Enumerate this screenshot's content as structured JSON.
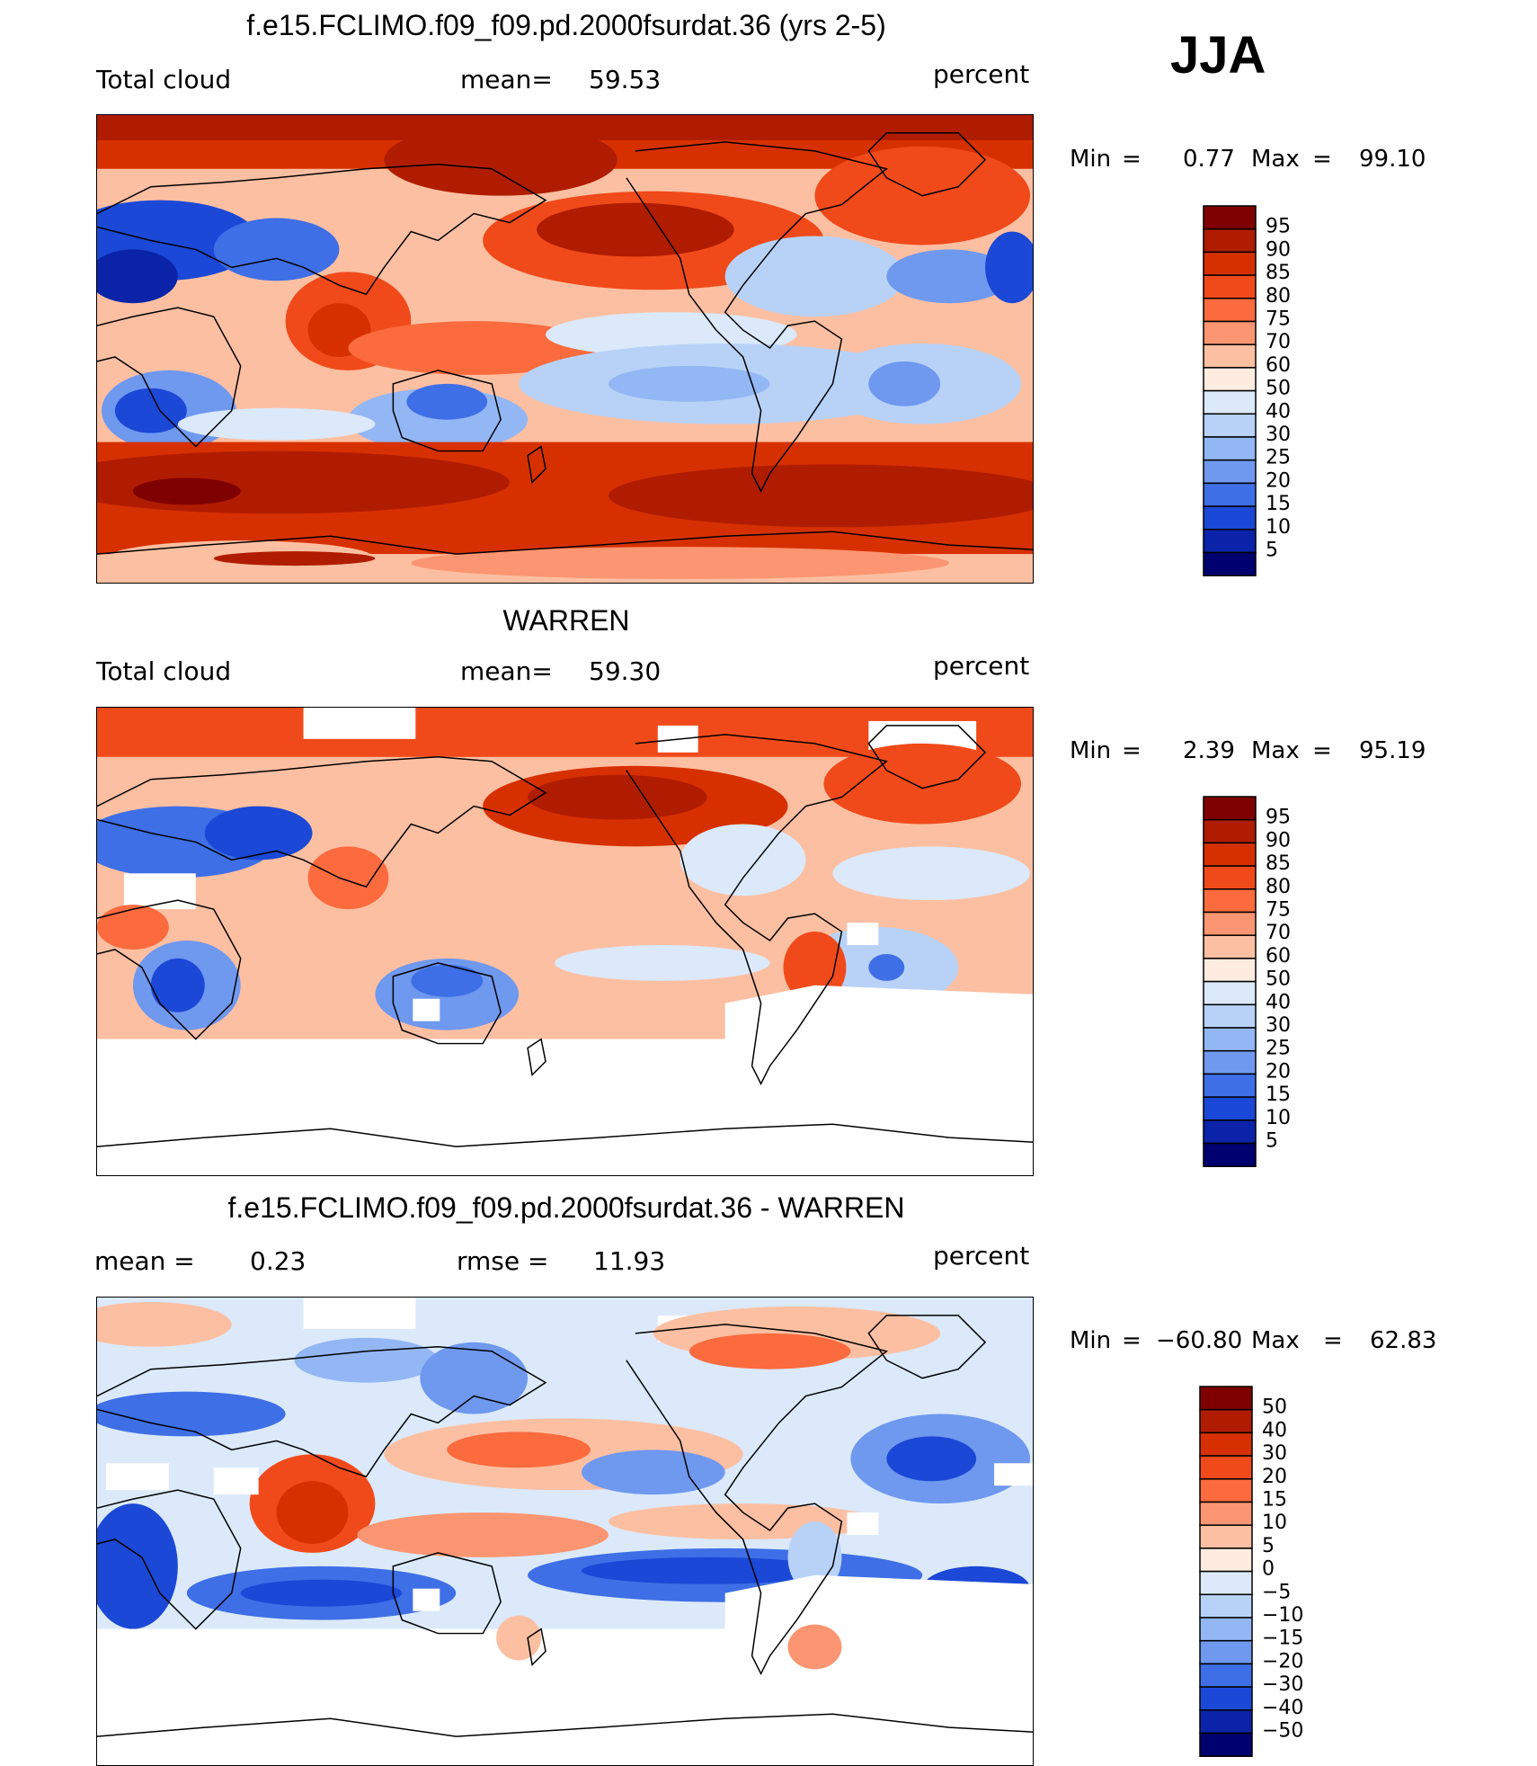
{
  "season": "JJA",
  "panels": [
    {
      "title": "f.e15.FCLIMO.f09_f09.pd.2000fsurdat.36 (yrs 2-5)",
      "left_label": "Total cloud",
      "stat1_label": "mean=",
      "stat1_value": "59.53",
      "stat2_label": "",
      "stat2_value": "",
      "units": "percent",
      "min_label": "Min",
      "min_eq": "=",
      "min_value": "0.77",
      "max_label": "Max",
      "max_eq": "=",
      "max_value": "99.10"
    },
    {
      "title": "WARREN",
      "left_label": "Total cloud",
      "stat1_label": "mean=",
      "stat1_value": "59.30",
      "stat2_label": "",
      "stat2_value": "",
      "units": "percent",
      "min_label": "Min",
      "min_eq": "=",
      "min_value": "2.39",
      "max_label": "Max",
      "max_eq": "=",
      "max_value": "95.19"
    },
    {
      "title": "f.e15.FCLIMO.f09_f09.pd.2000fsurdat.36 - WARREN",
      "left_label": "",
      "stat1_label": "mean =",
      "stat1_value": "0.23",
      "stat2_label": "rmse =",
      "stat2_value": "11.93",
      "units": "percent",
      "min_label": "Min",
      "min_eq": "=",
      "min_value": "−60.80",
      "max_label": "Max",
      "max_eq": "=",
      "max_value": "62.83"
    }
  ],
  "chart_data": [
    {
      "type": "heatmap",
      "title": "f.e15.FCLIMO.f09_f09.pd.2000fsurdat.36 (yrs 2-5)",
      "variable": "Total cloud",
      "units": "percent",
      "mean": 59.53,
      "min": 0.77,
      "max": 99.1,
      "colorbar_levels": [
        95,
        90,
        85,
        80,
        75,
        70,
        60,
        50,
        40,
        30,
        25,
        20,
        15,
        10,
        5
      ]
    },
    {
      "type": "heatmap",
      "title": "WARREN",
      "variable": "Total cloud",
      "units": "percent",
      "mean": 59.3,
      "min": 2.39,
      "max": 95.19,
      "colorbar_levels": [
        95,
        90,
        85,
        80,
        75,
        70,
        60,
        50,
        40,
        30,
        25,
        20,
        15,
        10,
        5
      ]
    },
    {
      "type": "heatmap",
      "title": "f.e15.FCLIMO.f09_f09.pd.2000fsurdat.36 - WARREN",
      "units": "percent",
      "mean": 0.23,
      "rmse": 11.93,
      "min": -60.8,
      "max": 62.83,
      "colorbar_levels": [
        "50",
        "40",
        "30",
        "20",
        "15",
        "10",
        "5",
        "0",
        "−5",
        "−10",
        "−15",
        "−20",
        "−30",
        "−40",
        "−50"
      ]
    }
  ],
  "colors": {
    "abs_scale": [
      "#7f0000",
      "#b01c00",
      "#d73000",
      "#f14a1a",
      "#fb6b3e",
      "#fc9571",
      "#fdbfa2",
      "#feece0",
      "#dbe9fa",
      "#b8d2f7",
      "#93b6f4",
      "#6f98ef",
      "#3e6fe6",
      "#1b48d6",
      "#0a23a8",
      "#00006e"
    ],
    "diff_scale": [
      "#7f0000",
      "#b01c00",
      "#d73000",
      "#f14a1a",
      "#fb6b3e",
      "#fc9571",
      "#fdbfa2",
      "#feece0",
      "#dbe9fa",
      "#b8d2f7",
      "#93b6f4",
      "#6f98ef",
      "#3e6fe6",
      "#1b48d6",
      "#0a23a8",
      "#00006e"
    ]
  }
}
